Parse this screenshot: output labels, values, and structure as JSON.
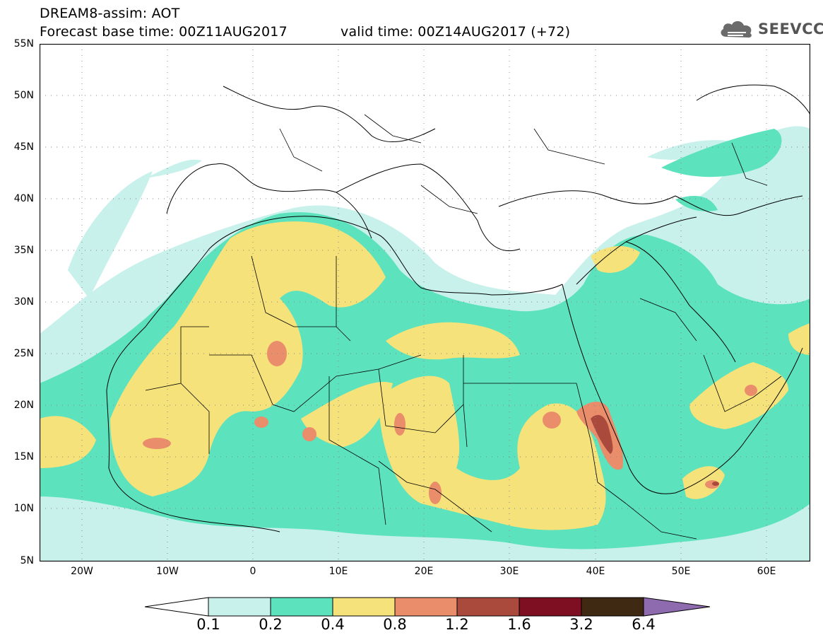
{
  "header": {
    "line1": "DREAM8-assim: AOT",
    "line2": "Forecast base time: 00Z11AUG2017",
    "line3": "valid time: 00Z14AUG2017 (+72)"
  },
  "logo": {
    "text": "SEEVCCC",
    "icon": "cloud-icon"
  },
  "map": {
    "lat_labels": [
      "55N",
      "50N",
      "45N",
      "40N",
      "35N",
      "30N",
      "25N",
      "20N",
      "15N",
      "10N",
      "5N"
    ],
    "lon_labels": [
      "20W",
      "10W",
      "0",
      "10E",
      "20E",
      "30E",
      "40E",
      "50E",
      "60E"
    ],
    "lon_range": [
      -25,
      65
    ],
    "lat_range": [
      5,
      55
    ],
    "grid": "dotted",
    "variable": "AOT",
    "colors": {
      "land": "#ffffff",
      "border": "#000000"
    }
  },
  "colorbar": {
    "levels": [
      "0.1",
      "0.2",
      "0.4",
      "0.8",
      "1.2",
      "1.6",
      "3.2",
      "6.4"
    ],
    "colors": [
      "#ffffff",
      "#c8f1ec",
      "#5ce2bc",
      "#f6e27a",
      "#e98d6b",
      "#aa4a3c",
      "#7e0f22",
      "#3f2913",
      "#8e6bae"
    ],
    "extend": "both"
  }
}
